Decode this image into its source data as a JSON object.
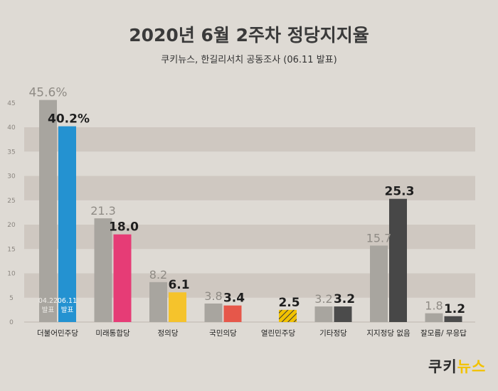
{
  "header": {
    "title": "2020년 6월 2주차 정당지지율",
    "subtitle": "쿠키뉴스, 한길리서치 공동조사 (06.11 발표)"
  },
  "logo": {
    "part1": "쿠키",
    "part2": "뉴스"
  },
  "chart_data": {
    "type": "bar",
    "title": "2020년 6월 2주차 정당지지율",
    "subtitle": "쿠키뉴스, 한길리서치 공동조사 (06.11 발표)",
    "categories": [
      "더불어민주당",
      "미래통합당",
      "정의당",
      "국민의당",
      "열린민주당",
      "기타정당",
      "지지정당 없음",
      "잘모름/ 무응답"
    ],
    "series": [
      {
        "values": [
          45.6,
          21.3,
          8.2,
          3.8,
          null,
          3.2,
          15.7,
          1.8
        ],
        "labels": [
          "45.6%",
          "21.3",
          "8.2",
          "3.8",
          "",
          "3.2",
          "15.7",
          "1.8"
        ],
        "inner_label": [
          "04.22",
          "발표"
        ],
        "color": "#a8a59f"
      },
      {
        "values": [
          40.2,
          18.0,
          6.1,
          3.4,
          2.5,
          3.2,
          25.3,
          1.2
        ],
        "labels": [
          "40.2%",
          "18.0",
          "6.1",
          "3.4",
          "2.5",
          "3.2",
          "25.3",
          "1.2"
        ],
        "inner_label": [
          "06.11",
          "발표"
        ],
        "colors": [
          "#2492d1",
          "#e63c76",
          "#f5c32c",
          "#e6574a",
          "#f2c200",
          "#4b4b4b",
          "#474747",
          "#4b4b4b"
        ],
        "patterns": [
          null,
          null,
          null,
          null,
          "hatch",
          null,
          null,
          null
        ]
      }
    ],
    "yticks": [
      0,
      5,
      10,
      15,
      20,
      25,
      30,
      35,
      40,
      45
    ],
    "ylim": [
      0,
      45
    ],
    "grid": "alternating horizontal bands"
  }
}
